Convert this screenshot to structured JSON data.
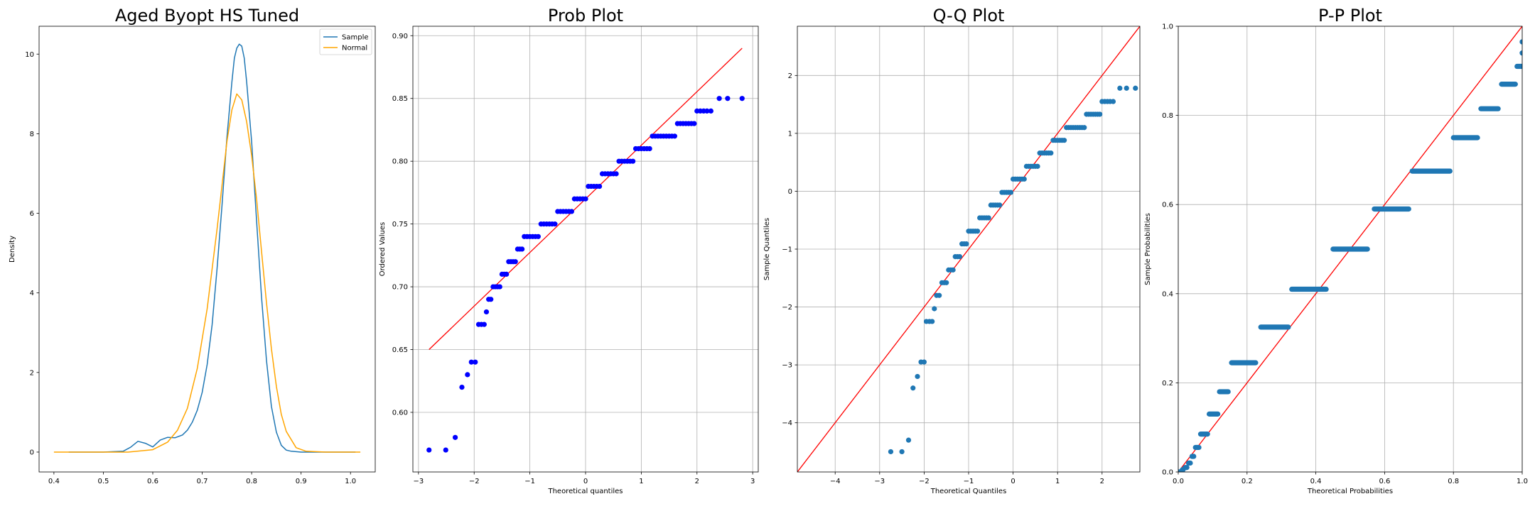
{
  "chart_data": [
    {
      "type": "line",
      "title": "Aged Byopt HS Tuned",
      "xlabel": "",
      "ylabel": "Density",
      "xlim": [
        0.37,
        1.05
      ],
      "ylim": [
        -0.5,
        10.7
      ],
      "xticks": [
        0.4,
        0.5,
        0.6,
        0.7,
        0.8,
        0.9,
        1.0
      ],
      "xtick_labels": [
        "0.4",
        "0.5",
        "0.6",
        "0.7",
        "0.8",
        "0.9",
        "1.0"
      ],
      "yticks": [
        0,
        2,
        4,
        6,
        8,
        10
      ],
      "ytick_labels": [
        "0",
        "2",
        "4",
        "6",
        "8",
        "10"
      ],
      "grid": false,
      "legend": "top-right",
      "series": [
        {
          "name": "Sample",
          "color": "#1f77b4",
          "x": [
            0.43,
            0.5,
            0.54,
            0.555,
            0.57,
            0.585,
            0.6,
            0.615,
            0.63,
            0.645,
            0.66,
            0.67,
            0.68,
            0.69,
            0.7,
            0.71,
            0.72,
            0.73,
            0.74,
            0.75,
            0.76,
            0.765,
            0.77,
            0.775,
            0.78,
            0.785,
            0.79,
            0.8,
            0.81,
            0.82,
            0.83,
            0.84,
            0.85,
            0.86,
            0.87,
            0.88,
            0.9,
            0.95,
            1.01
          ],
          "y": [
            0.0,
            0.0,
            0.02,
            0.12,
            0.27,
            0.22,
            0.13,
            0.3,
            0.37,
            0.36,
            0.43,
            0.55,
            0.75,
            1.05,
            1.5,
            2.2,
            3.2,
            4.6,
            6.2,
            7.9,
            9.3,
            9.9,
            10.15,
            10.25,
            10.2,
            9.9,
            9.3,
            7.8,
            5.8,
            3.9,
            2.3,
            1.15,
            0.5,
            0.17,
            0.05,
            0.02,
            0.0,
            0.0,
            0.0
          ]
        },
        {
          "name": "Normal",
          "color": "#ffa500",
          "x": [
            0.4,
            0.55,
            0.6,
            0.63,
            0.65,
            0.67,
            0.69,
            0.71,
            0.73,
            0.74,
            0.75,
            0.76,
            0.77,
            0.78,
            0.79,
            0.8,
            0.81,
            0.82,
            0.83,
            0.84,
            0.85,
            0.86,
            0.87,
            0.89,
            0.91,
            0.95,
            1.02
          ],
          "y": [
            0.0,
            0.0,
            0.06,
            0.25,
            0.55,
            1.1,
            2.1,
            3.6,
            5.6,
            6.7,
            7.8,
            8.6,
            9.0,
            8.85,
            8.3,
            7.45,
            6.35,
            5.05,
            3.75,
            2.6,
            1.65,
            0.95,
            0.52,
            0.11,
            0.02,
            0.0,
            0.0
          ]
        }
      ]
    },
    {
      "type": "scatter",
      "title": "Prob Plot",
      "xlabel": "Theoretical quantiles",
      "ylabel": "Ordered Values",
      "xlim": [
        -3.1,
        3.1
      ],
      "ylim": [
        0.5525,
        0.9075
      ],
      "xticks": [
        -3,
        -2,
        -1,
        0,
        1,
        2,
        3
      ],
      "xtick_labels": [
        "−3",
        "−2",
        "−1",
        "0",
        "1",
        "2",
        "3"
      ],
      "yticks": [
        0.6,
        0.65,
        0.7,
        0.75,
        0.8,
        0.85,
        0.9
      ],
      "ytick_labels": [
        "0.60",
        "0.65",
        "0.70",
        "0.75",
        "0.80",
        "0.85",
        "0.90"
      ],
      "grid": true,
      "point_color": "#0000ff",
      "line_color": "#ff0000",
      "fit_line": {
        "x": [
          -2.81,
          2.81
        ],
        "y": [
          0.65,
          0.89
        ]
      },
      "points": [
        [
          -2.81,
          0.57
        ],
        [
          -2.51,
          0.57
        ],
        [
          -2.34,
          0.58
        ],
        [
          -2.22,
          0.62
        ],
        [
          -2.12,
          0.63
        ],
        [
          -2.05,
          0.64
        ],
        [
          -1.98,
          0.64
        ],
        [
          -1.92,
          0.67
        ],
        [
          -1.87,
          0.67
        ],
        [
          -1.82,
          0.67
        ],
        [
          -1.78,
          0.68
        ],
        [
          -1.74,
          0.69
        ],
        [
          -1.7,
          0.69
        ],
        [
          -1.66,
          0.7
        ],
        [
          -1.62,
          0.7
        ],
        [
          -1.58,
          0.7
        ],
        [
          -1.54,
          0.7
        ],
        [
          -1.5,
          0.71
        ],
        [
          -1.46,
          0.71
        ],
        [
          -1.42,
          0.71
        ],
        [
          -1.38,
          0.72
        ],
        [
          -1.34,
          0.72
        ],
        [
          -1.3,
          0.72
        ],
        [
          -1.26,
          0.72
        ],
        [
          -1.22,
          0.73
        ],
        [
          -1.18,
          0.73
        ],
        [
          -1.14,
          0.73
        ],
        [
          -1.1,
          0.74
        ],
        [
          -1.05,
          0.74
        ],
        [
          -1.0,
          0.74
        ],
        [
          -0.95,
          0.74
        ],
        [
          -0.9,
          0.74
        ],
        [
          -0.85,
          0.74
        ],
        [
          -0.8,
          0.75
        ],
        [
          -0.75,
          0.75
        ],
        [
          -0.7,
          0.75
        ],
        [
          -0.65,
          0.75
        ],
        [
          -0.6,
          0.75
        ],
        [
          -0.55,
          0.75
        ],
        [
          -0.5,
          0.76
        ],
        [
          -0.45,
          0.76
        ],
        [
          -0.4,
          0.76
        ],
        [
          -0.35,
          0.76
        ],
        [
          -0.3,
          0.76
        ],
        [
          -0.25,
          0.76
        ],
        [
          -0.2,
          0.77
        ],
        [
          -0.15,
          0.77
        ],
        [
          -0.1,
          0.77
        ],
        [
          -0.05,
          0.77
        ],
        [
          0.0,
          0.77
        ],
        [
          0.05,
          0.78
        ],
        [
          0.1,
          0.78
        ],
        [
          0.15,
          0.78
        ],
        [
          0.2,
          0.78
        ],
        [
          0.25,
          0.78
        ],
        [
          0.3,
          0.79
        ],
        [
          0.35,
          0.79
        ],
        [
          0.4,
          0.79
        ],
        [
          0.45,
          0.79
        ],
        [
          0.5,
          0.79
        ],
        [
          0.55,
          0.79
        ],
        [
          0.6,
          0.8
        ],
        [
          0.65,
          0.8
        ],
        [
          0.7,
          0.8
        ],
        [
          0.75,
          0.8
        ],
        [
          0.8,
          0.8
        ],
        [
          0.85,
          0.8
        ],
        [
          0.9,
          0.81
        ],
        [
          0.95,
          0.81
        ],
        [
          1.0,
          0.81
        ],
        [
          1.05,
          0.81
        ],
        [
          1.1,
          0.81
        ],
        [
          1.15,
          0.81
        ],
        [
          1.2,
          0.82
        ],
        [
          1.25,
          0.82
        ],
        [
          1.3,
          0.82
        ],
        [
          1.35,
          0.82
        ],
        [
          1.4,
          0.82
        ],
        [
          1.45,
          0.82
        ],
        [
          1.5,
          0.82
        ],
        [
          1.55,
          0.82
        ],
        [
          1.6,
          0.82
        ],
        [
          1.65,
          0.83
        ],
        [
          1.7,
          0.83
        ],
        [
          1.75,
          0.83
        ],
        [
          1.8,
          0.83
        ],
        [
          1.85,
          0.83
        ],
        [
          1.9,
          0.83
        ],
        [
          1.95,
          0.83
        ],
        [
          2.0,
          0.84
        ],
        [
          2.06,
          0.84
        ],
        [
          2.12,
          0.84
        ],
        [
          2.18,
          0.84
        ],
        [
          2.25,
          0.84
        ],
        [
          2.4,
          0.85
        ],
        [
          2.55,
          0.85
        ],
        [
          2.81,
          0.85
        ]
      ]
    },
    {
      "type": "scatter",
      "title": "Q-Q Plot",
      "xlabel": "Theoretical Quantiles",
      "ylabel": "Sample Quantiles",
      "xlim": [
        -4.85,
        2.85
      ],
      "ylim": [
        -4.85,
        2.85
      ],
      "xticks": [
        -4,
        -3,
        -2,
        -1,
        0,
        1,
        2
      ],
      "xtick_labels": [
        "−4",
        "−3",
        "−2",
        "−1",
        "0",
        "1",
        "2"
      ],
      "yticks": [
        -4,
        -3,
        -2,
        -1,
        0,
        1,
        2
      ],
      "ytick_labels": [
        "−4",
        "−3",
        "−2",
        "−1",
        "0",
        "1",
        "2"
      ],
      "grid": true,
      "point_color": "#1f77b4",
      "line_color": "#ff0000",
      "fit_line": {
        "x": [
          -4.85,
          2.85
        ],
        "y": [
          -4.85,
          2.85
        ]
      },
      "points": [
        [
          -2.75,
          -4.5
        ],
        [
          -2.5,
          -4.5
        ],
        [
          -2.35,
          -4.3
        ],
        [
          -2.25,
          -3.4
        ],
        [
          -2.15,
          -3.2
        ],
        [
          -2.07,
          -2.95
        ],
        [
          -2.0,
          -2.95
        ],
        [
          -1.95,
          -2.25
        ],
        [
          -1.88,
          -2.25
        ],
        [
          -1.82,
          -2.25
        ],
        [
          -1.77,
          -2.03
        ],
        [
          -1.72,
          -1.8
        ],
        [
          -1.66,
          -1.8
        ],
        [
          -1.6,
          -1.58
        ],
        [
          -1.55,
          -1.58
        ],
        [
          -1.5,
          -1.58
        ],
        [
          -1.45,
          -1.36
        ],
        [
          -1.4,
          -1.36
        ],
        [
          -1.35,
          -1.36
        ],
        [
          -1.3,
          -1.13
        ],
        [
          -1.25,
          -1.13
        ],
        [
          -1.2,
          -1.13
        ],
        [
          -1.15,
          -0.91
        ],
        [
          -1.1,
          -0.91
        ],
        [
          -1.05,
          -0.91
        ],
        [
          -1.0,
          -0.69
        ],
        [
          -0.95,
          -0.69
        ],
        [
          -0.9,
          -0.69
        ],
        [
          -0.85,
          -0.69
        ],
        [
          -0.8,
          -0.69
        ],
        [
          -0.75,
          -0.46
        ],
        [
          -0.7,
          -0.46
        ],
        [
          -0.65,
          -0.46
        ],
        [
          -0.6,
          -0.46
        ],
        [
          -0.55,
          -0.46
        ],
        [
          -0.5,
          -0.24
        ],
        [
          -0.45,
          -0.24
        ],
        [
          -0.4,
          -0.24
        ],
        [
          -0.35,
          -0.24
        ],
        [
          -0.3,
          -0.24
        ],
        [
          -0.25,
          -0.02
        ],
        [
          -0.2,
          -0.02
        ],
        [
          -0.15,
          -0.02
        ],
        [
          -0.1,
          -0.02
        ],
        [
          -0.05,
          -0.02
        ],
        [
          0.0,
          0.21
        ],
        [
          0.05,
          0.21
        ],
        [
          0.1,
          0.21
        ],
        [
          0.15,
          0.21
        ],
        [
          0.2,
          0.21
        ],
        [
          0.25,
          0.21
        ],
        [
          0.3,
          0.43
        ],
        [
          0.35,
          0.43
        ],
        [
          0.4,
          0.43
        ],
        [
          0.45,
          0.43
        ],
        [
          0.5,
          0.43
        ],
        [
          0.55,
          0.43
        ],
        [
          0.6,
          0.66
        ],
        [
          0.65,
          0.66
        ],
        [
          0.7,
          0.66
        ],
        [
          0.75,
          0.66
        ],
        [
          0.8,
          0.66
        ],
        [
          0.85,
          0.66
        ],
        [
          0.9,
          0.88
        ],
        [
          0.95,
          0.88
        ],
        [
          1.0,
          0.88
        ],
        [
          1.05,
          0.88
        ],
        [
          1.1,
          0.88
        ],
        [
          1.15,
          0.88
        ],
        [
          1.2,
          1.1
        ],
        [
          1.25,
          1.1
        ],
        [
          1.3,
          1.1
        ],
        [
          1.35,
          1.1
        ],
        [
          1.4,
          1.1
        ],
        [
          1.45,
          1.1
        ],
        [
          1.5,
          1.1
        ],
        [
          1.55,
          1.1
        ],
        [
          1.6,
          1.1
        ],
        [
          1.65,
          1.33
        ],
        [
          1.7,
          1.33
        ],
        [
          1.75,
          1.33
        ],
        [
          1.8,
          1.33
        ],
        [
          1.85,
          1.33
        ],
        [
          1.9,
          1.33
        ],
        [
          1.95,
          1.33
        ],
        [
          2.0,
          1.55
        ],
        [
          2.06,
          1.55
        ],
        [
          2.12,
          1.55
        ],
        [
          2.18,
          1.55
        ],
        [
          2.25,
          1.55
        ],
        [
          2.4,
          1.78
        ],
        [
          2.55,
          1.78
        ],
        [
          2.75,
          1.78
        ]
      ]
    },
    {
      "type": "scatter",
      "title": "P-P Plot",
      "xlabel": "Theoretical Probabilities",
      "ylabel": "Sample Probabilities",
      "xlim": [
        0.0,
        1.0
      ],
      "ylim": [
        0.0,
        1.0
      ],
      "xticks": [
        0.0,
        0.2,
        0.4,
        0.6,
        0.8,
        1.0
      ],
      "xtick_labels": [
        "0.0",
        "0.2",
        "0.4",
        "0.6",
        "0.8",
        "1.0"
      ],
      "yticks": [
        0.0,
        0.2,
        0.4,
        0.6,
        0.8,
        1.0
      ],
      "ytick_labels": [
        "0.0",
        "0.2",
        "0.4",
        "0.6",
        "0.8",
        "1.0"
      ],
      "grid": true,
      "point_color": "#1f77b4",
      "line_color": "#ff0000",
      "fit_line": {
        "x": [
          0.0,
          1.0
        ],
        "y": [
          0.0,
          1.0
        ]
      },
      "steps": [
        {
          "x0": 0.0,
          "x1": 0.005,
          "y": 0.0
        },
        {
          "x0": 0.012,
          "x1": 0.014,
          "y": 0.005
        },
        {
          "x0": 0.02,
          "x1": 0.025,
          "y": 0.01
        },
        {
          "x0": 0.03,
          "x1": 0.035,
          "y": 0.02
        },
        {
          "x0": 0.04,
          "x1": 0.045,
          "y": 0.035
        },
        {
          "x0": 0.05,
          "x1": 0.06,
          "y": 0.055
        },
        {
          "x0": 0.065,
          "x1": 0.085,
          "y": 0.085
        },
        {
          "x0": 0.09,
          "x1": 0.115,
          "y": 0.13
        },
        {
          "x0": 0.12,
          "x1": 0.145,
          "y": 0.18
        },
        {
          "x0": 0.155,
          "x1": 0.225,
          "y": 0.245
        },
        {
          "x0": 0.24,
          "x1": 0.32,
          "y": 0.325
        },
        {
          "x0": 0.33,
          "x1": 0.43,
          "y": 0.41
        },
        {
          "x0": 0.45,
          "x1": 0.55,
          "y": 0.5
        },
        {
          "x0": 0.57,
          "x1": 0.67,
          "y": 0.59
        },
        {
          "x0": 0.68,
          "x1": 0.79,
          "y": 0.675
        },
        {
          "x0": 0.8,
          "x1": 0.87,
          "y": 0.75
        },
        {
          "x0": 0.88,
          "x1": 0.93,
          "y": 0.815
        },
        {
          "x0": 0.94,
          "x1": 0.98,
          "y": 0.87
        },
        {
          "x0": 0.985,
          "x1": 1.0,
          "y": 0.91
        },
        {
          "x0": 1.0,
          "x1": 1.0,
          "y": 0.94
        },
        {
          "x0": 1.0,
          "x1": 1.0,
          "y": 0.965
        }
      ]
    }
  ]
}
